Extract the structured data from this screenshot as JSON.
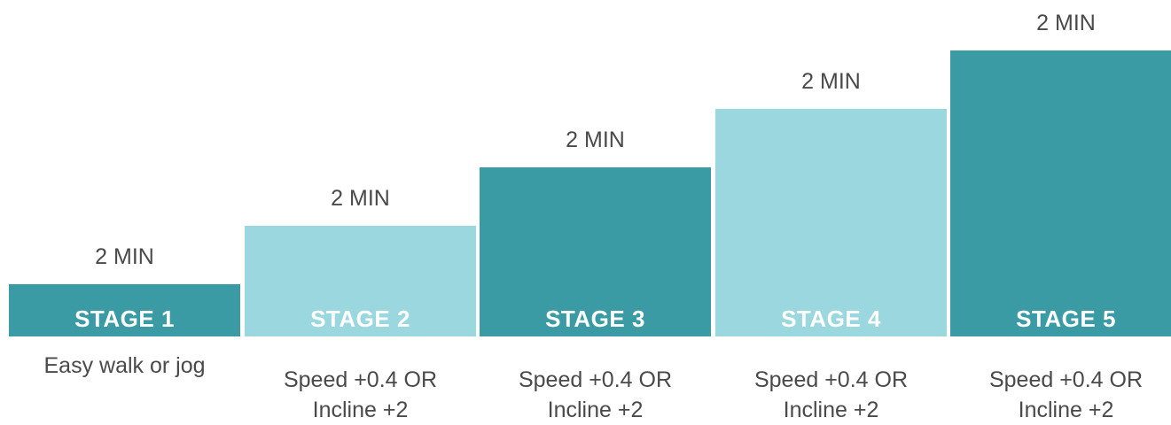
{
  "colors": {
    "dark_teal": "#3a9ba5",
    "light_teal": "#9bd7df",
    "text": "#4a4a4a",
    "label_text": "#ffffff"
  },
  "stages": [
    {
      "label": "STAGE 1",
      "duration": "2 MIN",
      "desc_line1": "Easy walk or jog",
      "desc_line2": "",
      "level": 1,
      "shade": "dark"
    },
    {
      "label": "STAGE 2",
      "duration": "2 MIN",
      "desc_line1": "Speed +0.4 OR",
      "desc_line2": "Incline +2",
      "level": 2,
      "shade": "light"
    },
    {
      "label": "STAGE 3",
      "duration": "2 MIN",
      "desc_line1": "Speed +0.4 OR",
      "desc_line2": "Incline +2",
      "level": 3,
      "shade": "dark"
    },
    {
      "label": "STAGE 4",
      "duration": "2 MIN",
      "desc_line1": "Speed +0.4 OR",
      "desc_line2": "Incline +2",
      "level": 4,
      "shade": "light"
    },
    {
      "label": "STAGE 5",
      "duration": "2 MIN",
      "desc_line1": "Speed +0.4 OR",
      "desc_line2": "Incline +2",
      "level": 5,
      "shade": "dark"
    }
  ]
}
